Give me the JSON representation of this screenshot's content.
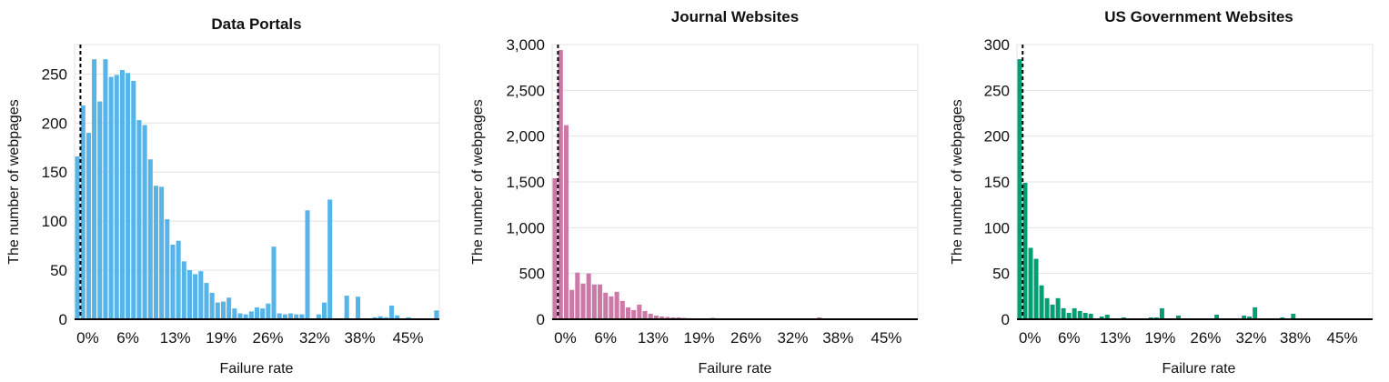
{
  "chart_data": [
    {
      "type": "bar",
      "title": "Data Portals",
      "xlabel": "Failure rate",
      "ylabel": "The number of webpages",
      "color": "#56b4e9",
      "x_range": [
        0,
        50
      ],
      "ylim": [
        0,
        280
      ],
      "yticks": [
        0,
        50,
        100,
        150,
        200,
        250
      ],
      "ytick_labels": [
        "0",
        "50",
        "100",
        "150",
        "200",
        "250"
      ],
      "xticks": [
        0.8,
        6.3,
        12.8,
        19.1,
        25.5,
        31.9,
        38.1,
        44.7
      ],
      "xtick_labels": [
        "0%",
        "6%",
        "13%",
        "19%",
        "26%",
        "32%",
        "38%",
        "45%"
      ],
      "reference_line_x": 0.8,
      "grid": true,
      "values": [
        166,
        218,
        190,
        265,
        222,
        265,
        247,
        249,
        254,
        251,
        243,
        203,
        198,
        163,
        136,
        135,
        102,
        76,
        80,
        59,
        50,
        46,
        49,
        37,
        27,
        17,
        18,
        22,
        11,
        6,
        5,
        8,
        12,
        11,
        16,
        74,
        6,
        5,
        6,
        5,
        5,
        111,
        0,
        5,
        17,
        122,
        0,
        0,
        24,
        0,
        23,
        0,
        0,
        2,
        3,
        2,
        14,
        4,
        0,
        2,
        0,
        0,
        0,
        0,
        9
      ]
    },
    {
      "type": "bar",
      "title": "Journal Websites",
      "xlabel": "Failure rate",
      "ylabel": "The number of webpages",
      "color": "#cc79a7",
      "x_range": [
        0,
        50
      ],
      "ylim": [
        0,
        3000
      ],
      "yticks": [
        0,
        500,
        1000,
        1500,
        2000,
        2500,
        3000
      ],
      "ytick_labels": [
        "0",
        "500",
        "1,000",
        "1,500",
        "2,000",
        "2,500",
        "3,000"
      ],
      "xticks": [
        0.8,
        6.3,
        12.8,
        19.1,
        25.5,
        31.9,
        38.1,
        44.7
      ],
      "xtick_labels": [
        "0%",
        "6%",
        "13%",
        "19%",
        "26%",
        "32%",
        "38%",
        "45%"
      ],
      "reference_line_x": 0.8,
      "grid": true,
      "values": [
        1540,
        2940,
        2120,
        320,
        510,
        390,
        500,
        380,
        380,
        290,
        250,
        300,
        200,
        130,
        100,
        160,
        90,
        60,
        40,
        30,
        25,
        20,
        20,
        15,
        12,
        10,
        10,
        8,
        15,
        8,
        5,
        5,
        8,
        5,
        5,
        5,
        8,
        5,
        5,
        5,
        5,
        5,
        5,
        5,
        5,
        5,
        5,
        20,
        5,
        5,
        10,
        5,
        5,
        5,
        5,
        5,
        5,
        5,
        5,
        5,
        5,
        5,
        5,
        5,
        5
      ]
    },
    {
      "type": "bar",
      "title": "US Government Websites",
      "xlabel": "Failure rate",
      "ylabel": "The number of webpages",
      "color": "#009e73",
      "x_range": [
        0,
        50
      ],
      "ylim": [
        0,
        300
      ],
      "yticks": [
        0,
        50,
        100,
        150,
        200,
        250,
        300
      ],
      "ytick_labels": [
        "0",
        "50",
        "100",
        "150",
        "200",
        "250",
        "300"
      ],
      "xticks": [
        0.8,
        6.3,
        12.8,
        19.1,
        25.5,
        31.9,
        38.1,
        44.7
      ],
      "xtick_labels": [
        "0%",
        "6%",
        "13%",
        "19%",
        "26%",
        "32%",
        "38%",
        "45%"
      ],
      "reference_line_x": 0.8,
      "grid": true,
      "values": [
        284,
        149,
        78,
        66,
        37,
        23,
        16,
        23,
        12,
        7,
        12,
        9,
        7,
        6,
        1,
        3,
        5,
        0,
        1,
        2,
        0,
        0,
        0,
        0,
        2,
        2,
        12,
        0,
        0,
        4,
        0,
        0,
        0,
        0,
        0,
        0,
        5,
        0,
        0,
        0,
        0,
        4,
        3,
        13,
        0,
        0,
        0,
        0,
        2,
        0,
        6,
        0,
        0,
        0,
        0,
        0,
        0,
        0,
        0,
        0,
        0,
        0,
        0,
        0,
        0
      ]
    }
  ]
}
